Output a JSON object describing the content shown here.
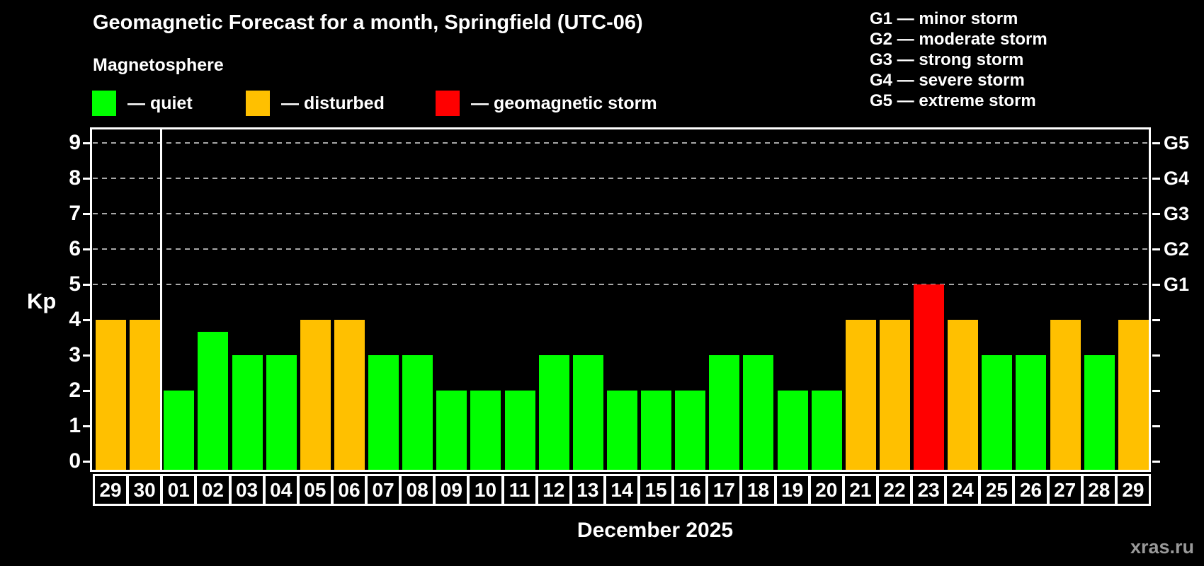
{
  "header": {
    "title": "Geomagnetic Forecast for a month, Springfield (UTC-06)",
    "subtitle": "Magnetosphere"
  },
  "kp_legend": [
    {
      "label": "— quiet",
      "color": "#00ff00"
    },
    {
      "label": "— disturbed",
      "color": "#ffc000"
    },
    {
      "label": "— geomagnetic storm",
      "color": "#ff0000"
    }
  ],
  "g_legend": [
    {
      "label": "G1 — minor storm"
    },
    {
      "label": "G2 — moderate storm"
    },
    {
      "label": "G3 — strong storm"
    },
    {
      "label": "G4 — severe storm"
    },
    {
      "label": "G5 — extreme storm"
    }
  ],
  "axes": {
    "y_title": "Kp",
    "y_ticks": [
      "0",
      "1",
      "2",
      "3",
      "4",
      "5",
      "6",
      "7",
      "8",
      "9"
    ],
    "right_ticks": [
      {
        "kp": 5,
        "label": "G1"
      },
      {
        "kp": 6,
        "label": "G2"
      },
      {
        "kp": 7,
        "label": "G3"
      },
      {
        "kp": 8,
        "label": "G4"
      },
      {
        "kp": 9,
        "label": "G5"
      }
    ],
    "x_title": "December 2025"
  },
  "watermark": "xras.ru",
  "chart_data": {
    "type": "bar",
    "title": "Geomagnetic Forecast for a month, Springfield (UTC-06)",
    "xlabel": "December 2025",
    "ylabel": "Kp",
    "ylim": [
      0,
      9.4
    ],
    "grid": "horizontal dashed lines at Kp 5,6,7,8,9 (G1–G5 storm levels)",
    "legend_position": "top-left",
    "categories": [
      "29",
      "30",
      "01",
      "02",
      "03",
      "04",
      "05",
      "06",
      "07",
      "08",
      "09",
      "10",
      "11",
      "12",
      "13",
      "14",
      "15",
      "16",
      "17",
      "18",
      "19",
      "20",
      "21",
      "22",
      "23",
      "24",
      "25",
      "26",
      "27",
      "28",
      "29"
    ],
    "series": [
      {
        "name": "Kp forecast",
        "values": [
          4,
          4,
          2,
          3.67,
          3,
          3,
          4,
          4,
          3,
          3,
          2,
          2,
          2,
          3,
          3,
          2,
          2,
          2,
          3,
          3,
          2,
          2,
          4,
          4,
          5,
          4,
          3,
          3,
          4,
          3,
          4
        ]
      }
    ],
    "statuses": [
      "disturbed",
      "disturbed",
      "quiet",
      "quiet",
      "quiet",
      "quiet",
      "disturbed",
      "disturbed",
      "quiet",
      "quiet",
      "quiet",
      "quiet",
      "quiet",
      "quiet",
      "quiet",
      "quiet",
      "quiet",
      "quiet",
      "quiet",
      "quiet",
      "quiet",
      "quiet",
      "disturbed",
      "disturbed",
      "storm",
      "disturbed",
      "quiet",
      "quiet",
      "disturbed",
      "quiet",
      "disturbed"
    ],
    "status_colors": {
      "quiet": "#00ff00",
      "disturbed": "#ffc000",
      "storm": "#ff0000"
    },
    "month_separator_after_index": 1,
    "note": "First two bars are Nov 29–30; vertical white line separates November from December"
  }
}
